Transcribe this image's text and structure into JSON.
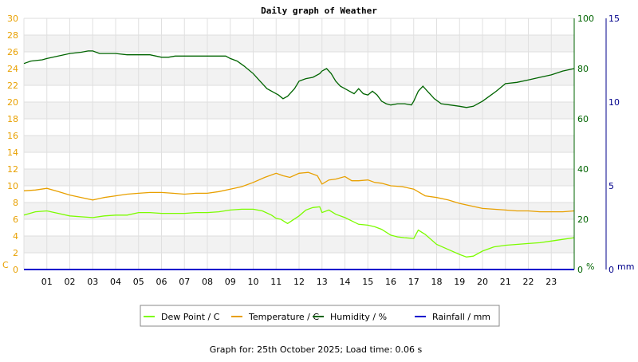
{
  "chart_data": {
    "type": "line",
    "title": "Daily graph of Weather",
    "footer": "Graph for: 25th October 2025; Load time: 0.06 s",
    "x_ticks": [
      "01",
      "02",
      "03",
      "04",
      "05",
      "06",
      "07",
      "08",
      "09",
      "10",
      "11",
      "12",
      "13",
      "14",
      "15",
      "16",
      "17",
      "18",
      "19",
      "20",
      "21",
      "22",
      "23"
    ],
    "xlim": [
      0,
      24
    ],
    "axes": {
      "left": {
        "unit_label": "C",
        "ylim": [
          0,
          30
        ],
        "ticks": [
          0,
          2,
          4,
          6,
          8,
          10,
          12,
          14,
          16,
          18,
          20,
          22,
          24,
          26,
          28,
          30
        ],
        "color": "#e8a000"
      },
      "right1": {
        "unit_label": "%",
        "ylim": [
          0,
          100
        ],
        "ticks": [
          0,
          20,
          40,
          60,
          80,
          100
        ],
        "color": "#006400"
      },
      "right2": {
        "unit_label": "mm",
        "ylim": [
          0,
          15
        ],
        "ticks": [
          0,
          5,
          10,
          15
        ],
        "color": "#00008b"
      }
    },
    "grid": true,
    "legend_position": "bottom",
    "series": [
      {
        "name": "Dew Point / C",
        "axis": "left",
        "color": "#7cfc00",
        "x": [
          0,
          0.5,
          1,
          1.5,
          2,
          2.5,
          3,
          3.5,
          4,
          4.5,
          5,
          5.5,
          6,
          6.5,
          7,
          7.5,
          8,
          8.5,
          9,
          9.5,
          10,
          10.4,
          10.8,
          11,
          11.2,
          11.5,
          12,
          12.3,
          12.6,
          12.9,
          13,
          13.3,
          13.6,
          14,
          14.3,
          14.6,
          15,
          15.3,
          15.6,
          16,
          16.3,
          16.6,
          17,
          17.2,
          17.5,
          18,
          18.5,
          19,
          19.3,
          19.6,
          20,
          20.5,
          21,
          21.5,
          22,
          22.5,
          23,
          23.5,
          24
        ],
        "values": [
          6.5,
          6.9,
          7.0,
          6.7,
          6.4,
          6.3,
          6.2,
          6.4,
          6.5,
          6.5,
          6.8,
          6.8,
          6.7,
          6.7,
          6.7,
          6.8,
          6.8,
          6.9,
          7.1,
          7.2,
          7.2,
          7.0,
          6.5,
          6.1,
          6.0,
          5.5,
          6.4,
          7.1,
          7.4,
          7.5,
          6.8,
          7.1,
          6.6,
          6.2,
          5.8,
          5.4,
          5.3,
          5.1,
          4.8,
          4.1,
          3.9,
          3.8,
          3.7,
          4.7,
          4.2,
          3.0,
          2.4,
          1.8,
          1.5,
          1.6,
          2.2,
          2.7,
          2.9,
          3.0,
          3.1,
          3.2,
          3.4,
          3.6,
          3.8
        ]
      },
      {
        "name": "Temperature / C",
        "axis": "left",
        "color": "#e8a000",
        "x": [
          0,
          0.5,
          1,
          1.5,
          2,
          2.5,
          3,
          3.5,
          4,
          4.5,
          5,
          5.5,
          6,
          6.5,
          7,
          7.5,
          8,
          8.5,
          9,
          9.5,
          10,
          10.5,
          11,
          11.3,
          11.6,
          12,
          12.4,
          12.8,
          13,
          13.3,
          13.6,
          14,
          14.3,
          14.6,
          15,
          15.3,
          15.6,
          16,
          16.5,
          17,
          17.5,
          18,
          18.5,
          19,
          19.5,
          20,
          20.5,
          21,
          21.5,
          22,
          22.5,
          23,
          23.5,
          24
        ],
        "values": [
          9.4,
          9.5,
          9.7,
          9.3,
          8.9,
          8.6,
          8.3,
          8.6,
          8.8,
          9.0,
          9.1,
          9.2,
          9.2,
          9.1,
          9.0,
          9.1,
          9.1,
          9.3,
          9.6,
          9.9,
          10.4,
          11.0,
          11.5,
          11.2,
          11.0,
          11.5,
          11.6,
          11.2,
          10.2,
          10.7,
          10.8,
          11.1,
          10.6,
          10.6,
          10.7,
          10.4,
          10.3,
          10.0,
          9.9,
          9.6,
          8.8,
          8.6,
          8.3,
          7.9,
          7.6,
          7.3,
          7.2,
          7.1,
          7.0,
          7.0,
          6.9,
          6.9,
          6.9,
          7.0
        ]
      },
      {
        "name": "Humidity / %",
        "axis": "right1",
        "color": "#006400",
        "x": [
          0,
          0.3,
          0.8,
          1,
          1.5,
          2,
          2.5,
          2.8,
          3,
          3.3,
          3.6,
          4,
          4.5,
          5,
          5.5,
          6,
          6.3,
          6.6,
          7,
          7.5,
          8,
          8.5,
          8.8,
          9,
          9.3,
          9.6,
          10,
          10.3,
          10.6,
          10.9,
          11.1,
          11.3,
          11.5,
          11.8,
          12,
          12.3,
          12.6,
          12.9,
          13,
          13.2,
          13.4,
          13.6,
          13.8,
          14,
          14.2,
          14.4,
          14.6,
          14.8,
          15,
          15.2,
          15.4,
          15.6,
          15.8,
          16,
          16.3,
          16.6,
          16.9,
          17,
          17.2,
          17.4,
          17.6,
          17.9,
          18.2,
          18.6,
          19,
          19.3,
          19.6,
          19.8,
          20,
          20.3,
          20.6,
          21,
          21.5,
          22,
          22.5,
          23,
          23.5,
          24
        ],
        "values": [
          82,
          83,
          83.5,
          84,
          85,
          86,
          86.5,
          87,
          87,
          86,
          86,
          86,
          85.5,
          85.5,
          85.5,
          84.5,
          84.5,
          85,
          85,
          85,
          85,
          85,
          85,
          84,
          83,
          81,
          78,
          75,
          72,
          70.5,
          69.5,
          68,
          69,
          72,
          75,
          76,
          76.5,
          78,
          79,
          80,
          78,
          75,
          73,
          72,
          71,
          70,
          72,
          70,
          69.5,
          71,
          69.5,
          67,
          66,
          65.5,
          66,
          66,
          65.5,
          67,
          71,
          73,
          71,
          68,
          66,
          65.5,
          65,
          64.5,
          65,
          66,
          67,
          69,
          71,
          74,
          74.5,
          75.5,
          76.5,
          77.5,
          79,
          80
        ]
      },
      {
        "name": "Rainfall / mm",
        "axis": "right2",
        "color": "#0000cd",
        "x": [
          0,
          24
        ],
        "values": [
          0,
          0
        ]
      }
    ]
  }
}
